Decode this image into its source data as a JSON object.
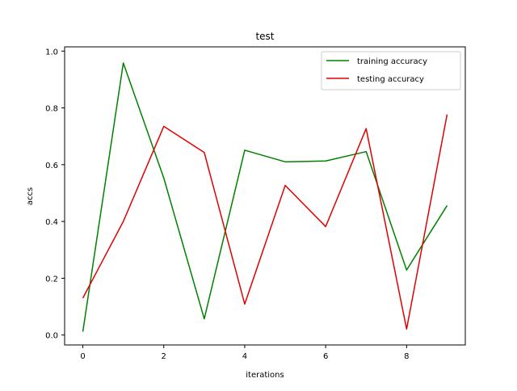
{
  "chart_data": {
    "type": "line",
    "title": "test",
    "xlabel": "iterations",
    "ylabel": "accs",
    "x": [
      0,
      1,
      2,
      3,
      4,
      5,
      6,
      7,
      8,
      9
    ],
    "xlim": [
      -0.45,
      9.45
    ],
    "ylim": [
      -0.035,
      1.015
    ],
    "xticks": [
      0,
      2,
      4,
      6,
      8
    ],
    "xtick_labels": [
      "0",
      "2",
      "4",
      "6",
      "8"
    ],
    "yticks": [
      0.0,
      0.2,
      0.4,
      0.6,
      0.8,
      1.0
    ],
    "ytick_labels": [
      "0.0",
      "0.2",
      "0.4",
      "0.6",
      "0.8",
      "1.0"
    ],
    "grid": false,
    "legend_position": "top-right",
    "series": [
      {
        "name": "training accuracy",
        "color": "#008000",
        "values": [
          0.012,
          0.958,
          0.553,
          0.057,
          0.651,
          0.61,
          0.613,
          0.646,
          0.229,
          0.456
        ]
      },
      {
        "name": "testing accuracy",
        "color": "#e00000",
        "values": [
          0.13,
          0.4,
          0.735,
          0.643,
          0.109,
          0.527,
          0.382,
          0.727,
          0.021,
          0.777
        ]
      }
    ]
  }
}
